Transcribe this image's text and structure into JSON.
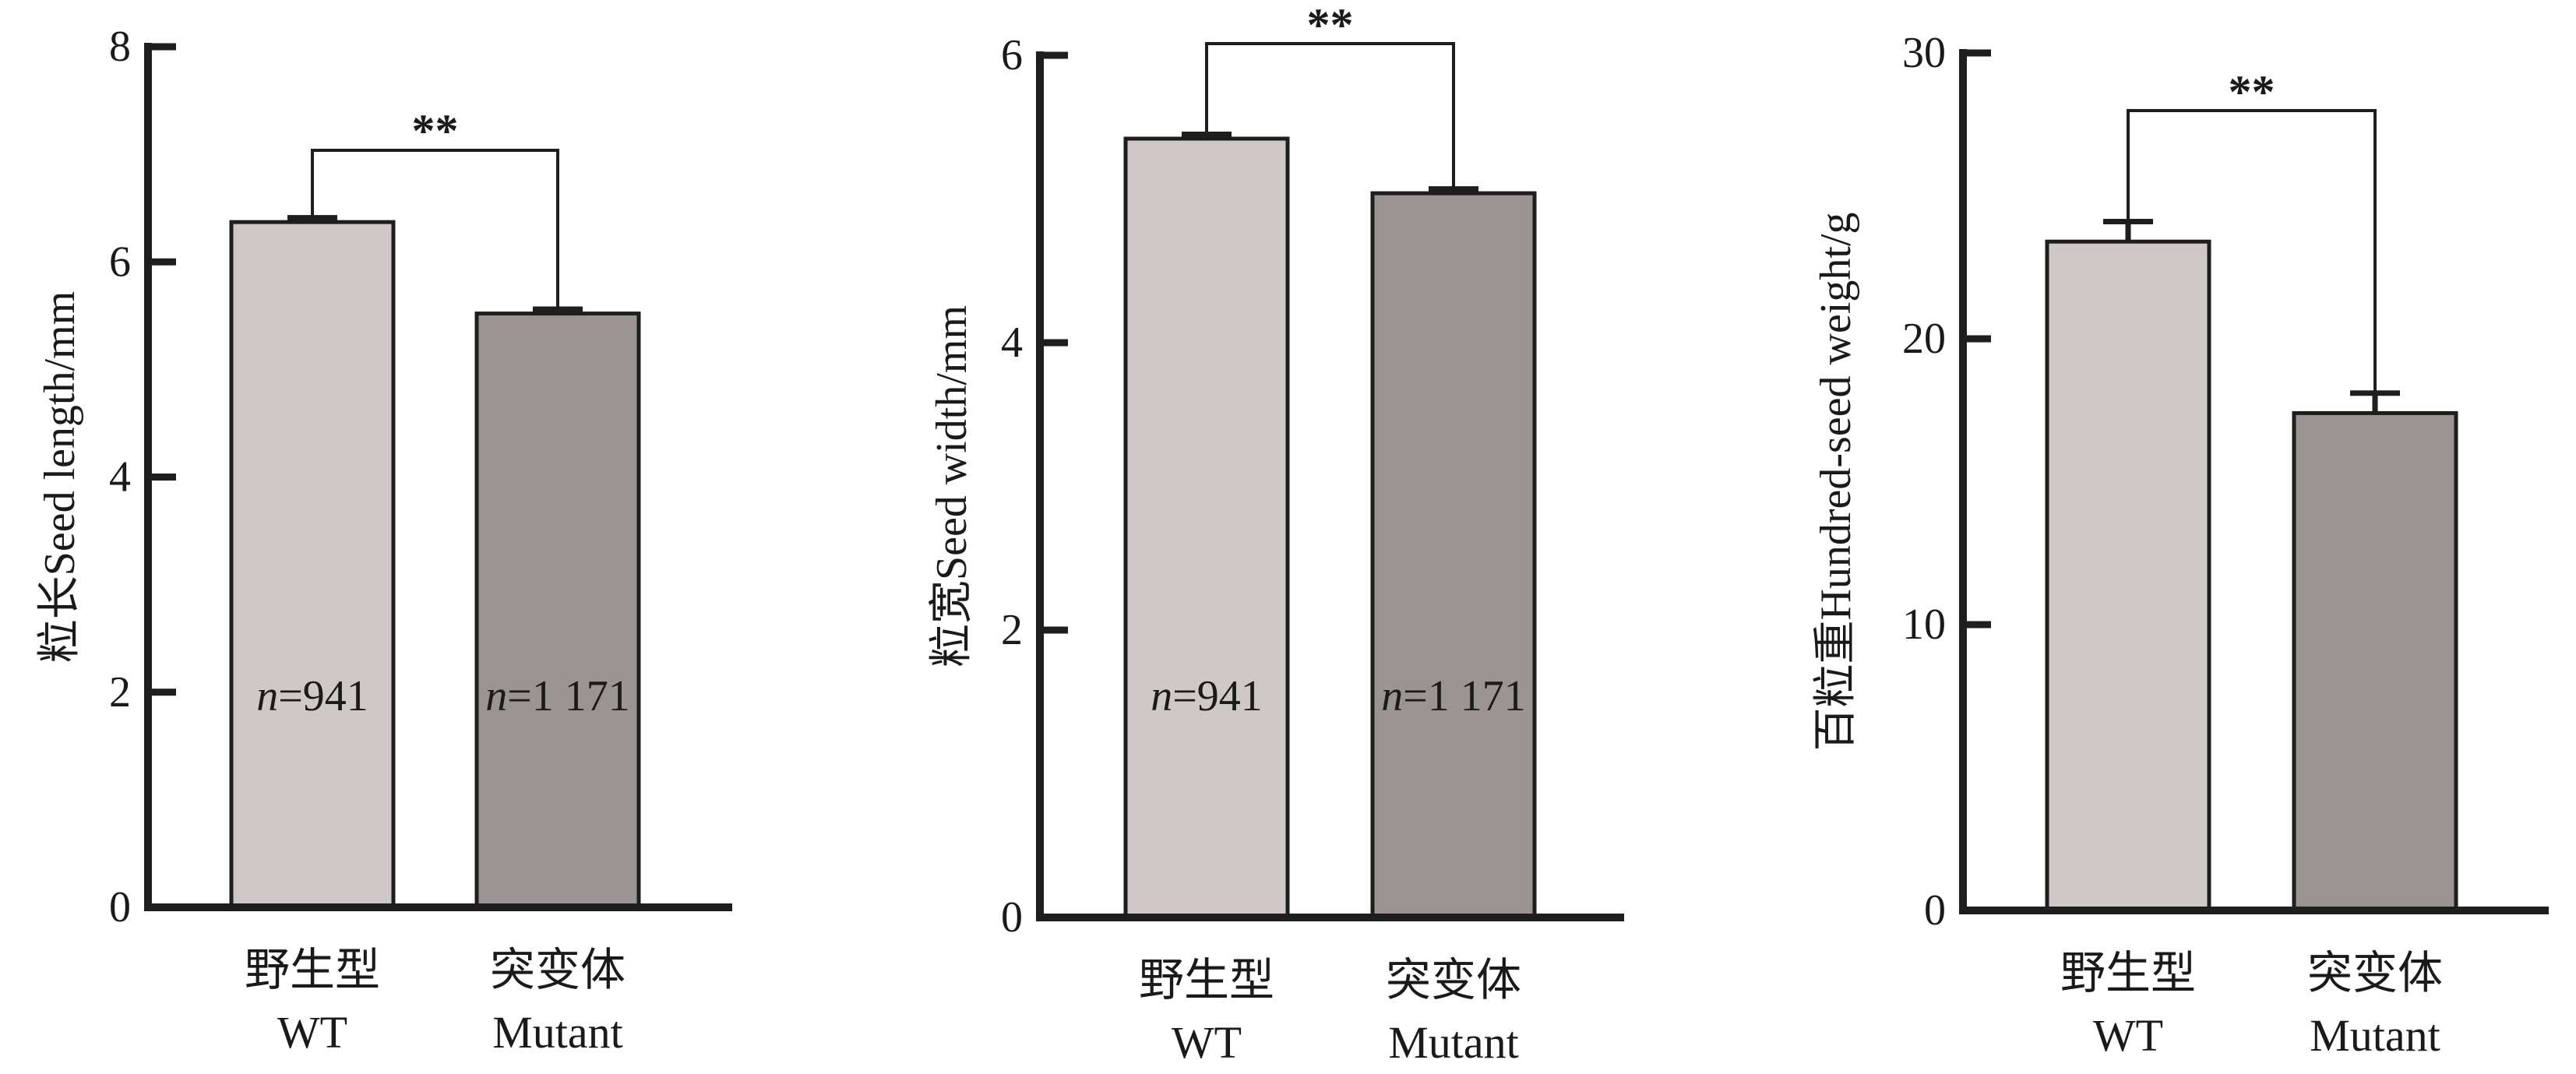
{
  "chart_data": [
    {
      "type": "bar",
      "ylabel": "粒长Seed length/mm",
      "ylim": [
        0,
        8
      ],
      "yticks": [
        "0",
        "2",
        "4",
        "6",
        "8"
      ],
      "categories": [
        {
          "cn": "野生型",
          "en": "WT"
        },
        {
          "cn": "突变体",
          "en": "Mutant"
        }
      ],
      "values": [
        6.37,
        5.52
      ],
      "errors": [
        0.04,
        0.04
      ],
      "n_labels": [
        {
          "italic": "n",
          "rest": "=941"
        },
        {
          "italic": "n",
          "rest": "=1 171"
        }
      ],
      "significance": "**",
      "colors": [
        "#d0c8c6",
        "#9c9393"
      ]
    },
    {
      "type": "bar",
      "ylabel": "粒宽Seed width/mm",
      "ylim": [
        0,
        6
      ],
      "yticks": [
        "0",
        "2",
        "4",
        "6"
      ],
      "categories": [
        {
          "cn": "野生型",
          "en": "WT"
        },
        {
          "cn": "突变体",
          "en": "Mutant"
        }
      ],
      "values": [
        5.42,
        5.04
      ],
      "errors": [
        0.03,
        0.03
      ],
      "n_labels": [
        {
          "italic": "n",
          "rest": "=941"
        },
        {
          "italic": "n",
          "rest": "=1 171"
        }
      ],
      "significance": "**",
      "colors": [
        "#d0c8c6",
        "#9c9393"
      ]
    },
    {
      "type": "bar",
      "ylabel": "百粒重Hundred-seed weight/g",
      "ylim": [
        0,
        30
      ],
      "yticks": [
        "0",
        "10",
        "20",
        "30"
      ],
      "categories": [
        {
          "cn": "野生型",
          "en": "WT"
        },
        {
          "cn": "突变体",
          "en": "Mutant"
        }
      ],
      "values": [
        23.4,
        17.4
      ],
      "errors": [
        0.7,
        0.7
      ],
      "n_labels": [],
      "significance": "**",
      "colors": [
        "#d0c8c6",
        "#9c9393"
      ]
    }
  ]
}
